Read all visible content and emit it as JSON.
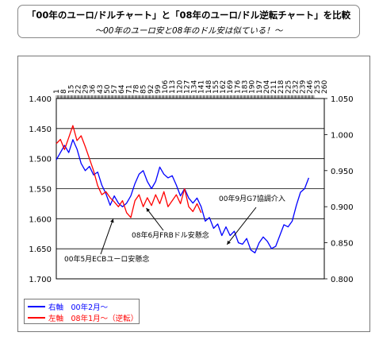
{
  "title": {
    "main": "「00年のユーロ/ドルチャート」と「08年のユーロ/ドル逆転チャート」を比較",
    "sub": "～00年のユーロ安と08年のドル安は似ている！～"
  },
  "legend": [
    {
      "label": "右軸　00年2月～",
      "color": "#0000ff"
    },
    {
      "label": "左軸　08年1月～（逆転）",
      "color": "#ff0000"
    }
  ],
  "chart_data": {
    "type": "line",
    "x_ticks": [
      1,
      8,
      15,
      22,
      29,
      36,
      43,
      50,
      57,
      64,
      71,
      78,
      85,
      92,
      99,
      106,
      113,
      120,
      127,
      134,
      141,
      148,
      155,
      162,
      169,
      176,
      183,
      190,
      197,
      204,
      211,
      218,
      225,
      232,
      239,
      246,
      253,
      260
    ],
    "xlim": [
      1,
      260
    ],
    "left_axis": {
      "ticks": [
        "1.400",
        "1.450",
        "1.500",
        "1.550",
        "1.600",
        "1.650",
        "1.700"
      ],
      "range": [
        1.4,
        1.7
      ],
      "inverted": true
    },
    "right_axis": {
      "ticks": [
        "1.050",
        "1.000",
        "0.950",
        "0.900",
        "0.850",
        "0.800"
      ],
      "range": [
        0.8,
        1.05
      ]
    },
    "series": [
      {
        "axis": "right",
        "color": "#0000ff",
        "points": [
          [
            1,
            0.965
          ],
          [
            5,
            0.975
          ],
          [
            9,
            0.985
          ],
          [
            13,
            0.975
          ],
          [
            17,
            0.993
          ],
          [
            21,
            0.98
          ],
          [
            25,
            0.96
          ],
          [
            29,
            0.95
          ],
          [
            33,
            0.956
          ],
          [
            37,
            0.944
          ],
          [
            41,
            0.948
          ],
          [
            45,
            0.93
          ],
          [
            49,
            0.918
          ],
          [
            53,
            0.902
          ],
          [
            57,
            0.915
          ],
          [
            61,
            0.905
          ],
          [
            65,
            0.9
          ],
          [
            69,
            0.905
          ],
          [
            73,
            0.915
          ],
          [
            77,
            0.932
          ],
          [
            81,
            0.945
          ],
          [
            85,
            0.95
          ],
          [
            89,
            0.935
          ],
          [
            93,
            0.925
          ],
          [
            97,
            0.935
          ],
          [
            101,
            0.955
          ],
          [
            105,
            0.945
          ],
          [
            109,
            0.94
          ],
          [
            113,
            0.943
          ],
          [
            117,
            0.93
          ],
          [
            121,
            0.915
          ],
          [
            125,
            0.925
          ],
          [
            129,
            0.912
          ],
          [
            133,
            0.905
          ],
          [
            137,
            0.912
          ],
          [
            141,
            0.9
          ],
          [
            145,
            0.88
          ],
          [
            149,
            0.885
          ],
          [
            153,
            0.87
          ],
          [
            157,
            0.876
          ],
          [
            161,
            0.86
          ],
          [
            165,
            0.872
          ],
          [
            169,
            0.86
          ],
          [
            173,
            0.866
          ],
          [
            177,
            0.85
          ],
          [
            181,
            0.848
          ],
          [
            185,
            0.856
          ],
          [
            189,
            0.84
          ],
          [
            193,
            0.836
          ],
          [
            197,
            0.85
          ],
          [
            201,
            0.858
          ],
          [
            205,
            0.852
          ],
          [
            209,
            0.842
          ],
          [
            213,
            0.845
          ],
          [
            217,
            0.86
          ],
          [
            221,
            0.875
          ],
          [
            225,
            0.872
          ],
          [
            229,
            0.88
          ],
          [
            233,
            0.902
          ],
          [
            237,
            0.92
          ],
          [
            241,
            0.925
          ],
          [
            245,
            0.94
          ]
        ]
      },
      {
        "axis": "left",
        "color": "#ff0000",
        "points": [
          [
            1,
            1.475
          ],
          [
            5,
            1.468
          ],
          [
            9,
            1.485
          ],
          [
            13,
            1.465
          ],
          [
            17,
            1.445
          ],
          [
            21,
            1.47
          ],
          [
            25,
            1.462
          ],
          [
            29,
            1.48
          ],
          [
            33,
            1.5
          ],
          [
            37,
            1.52
          ],
          [
            41,
            1.545
          ],
          [
            45,
            1.56
          ],
          [
            49,
            1.555
          ],
          [
            53,
            1.565
          ],
          [
            57,
            1.572
          ],
          [
            61,
            1.58
          ],
          [
            65,
            1.57
          ],
          [
            69,
            1.59
          ],
          [
            73,
            1.598
          ],
          [
            77,
            1.57
          ],
          [
            81,
            1.56
          ],
          [
            85,
            1.58
          ],
          [
            89,
            1.565
          ],
          [
            93,
            1.578
          ],
          [
            97,
            1.56
          ],
          [
            101,
            1.575
          ],
          [
            105,
            1.555
          ],
          [
            109,
            1.58
          ],
          [
            113,
            1.57
          ],
          [
            117,
            1.56
          ],
          [
            121,
            1.575
          ],
          [
            125,
            1.55
          ],
          [
            129,
            1.58
          ],
          [
            133,
            1.588
          ],
          [
            137,
            1.575
          ],
          [
            141,
            1.59
          ]
        ]
      }
    ],
    "annotations": [
      {
        "text": "00年9月G7協調介入",
        "tip": [
          166,
          0.852
        ]
      },
      {
        "text": "08年6月FRBドル安懸念",
        "tip": [
          88,
          1.577
        ]
      },
      {
        "text": "00年5月ECBユーロ安懸念",
        "tip": [
          56,
          1.595
        ]
      }
    ]
  }
}
